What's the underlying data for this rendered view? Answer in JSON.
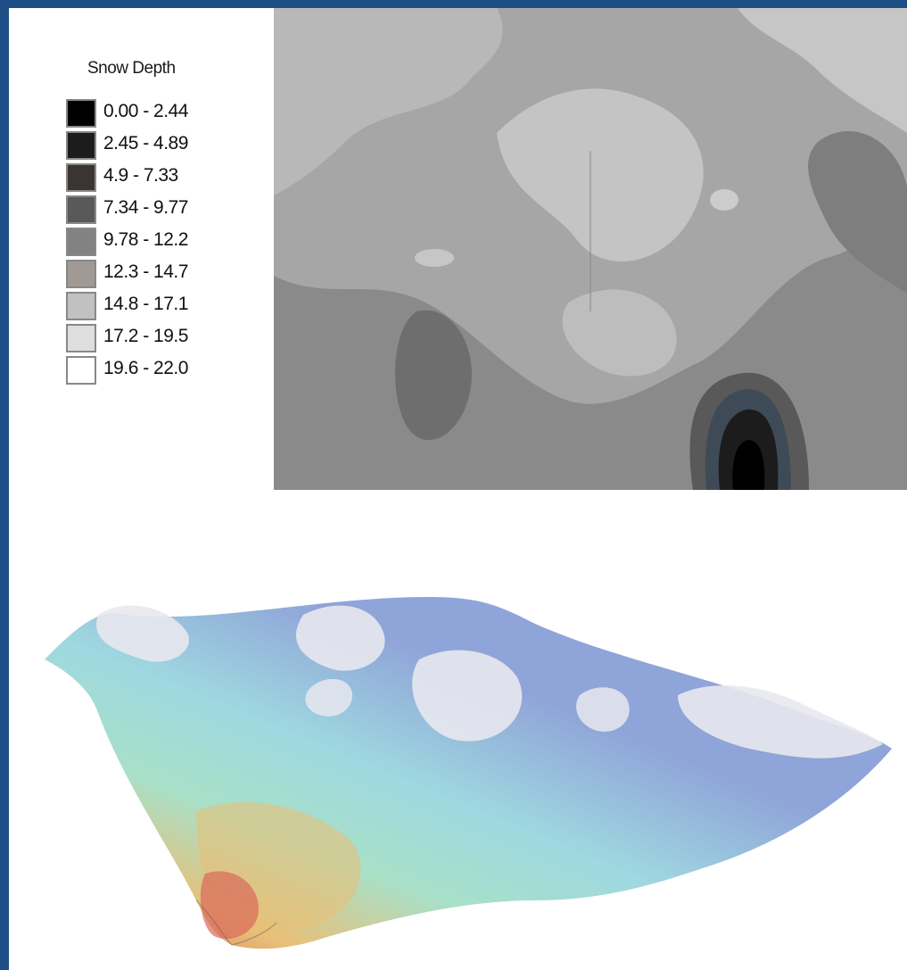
{
  "legend": {
    "title": "Snow Depth",
    "classes": [
      {
        "label": "0.00 - 2.44",
        "color": "#000000"
      },
      {
        "label": "2.45 - 4.89",
        "color": "#1c1c1c"
      },
      {
        "label": "4.9 - 7.33",
        "color": "#3a3532"
      },
      {
        "label": "7.34 - 9.77",
        "color": "#595959"
      },
      {
        "label": "9.78 - 12.2",
        "color": "#828282"
      },
      {
        "label": "12.3 - 14.7",
        "color": "#a19994"
      },
      {
        "label": "14.8 - 17.1",
        "color": "#c1c1c1"
      },
      {
        "label": "17.2 - 19.5",
        "color": "#dedede"
      },
      {
        "label": "19.6 - 22.0",
        "color": "#ffffff"
      }
    ]
  },
  "contour_map": {
    "background_color": "#a6a6a6"
  },
  "surface": {
    "colors": {
      "high": "#e8e8ee",
      "mid_high": "#8fa4d8",
      "mid": "#9fd8e0",
      "low": "#a8e0c8",
      "warm": "#e8c078",
      "hot": "#d86a5a"
    }
  }
}
